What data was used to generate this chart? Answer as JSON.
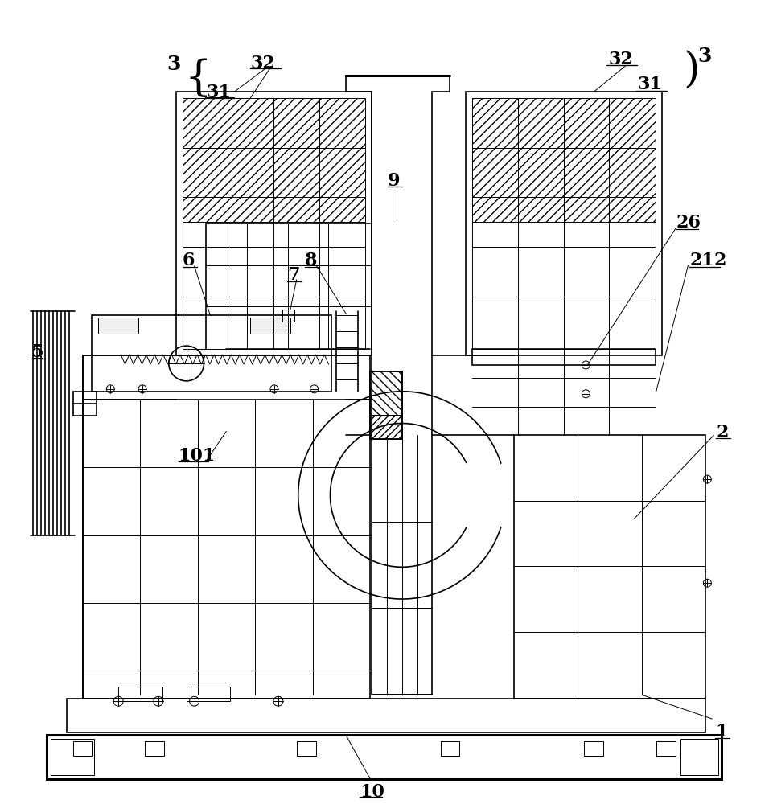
{
  "bg_color": "#ffffff",
  "lc": "#000000",
  "lw": 1.2,
  "tlw": 0.7,
  "thw": 2.2,
  "fs": 16
}
